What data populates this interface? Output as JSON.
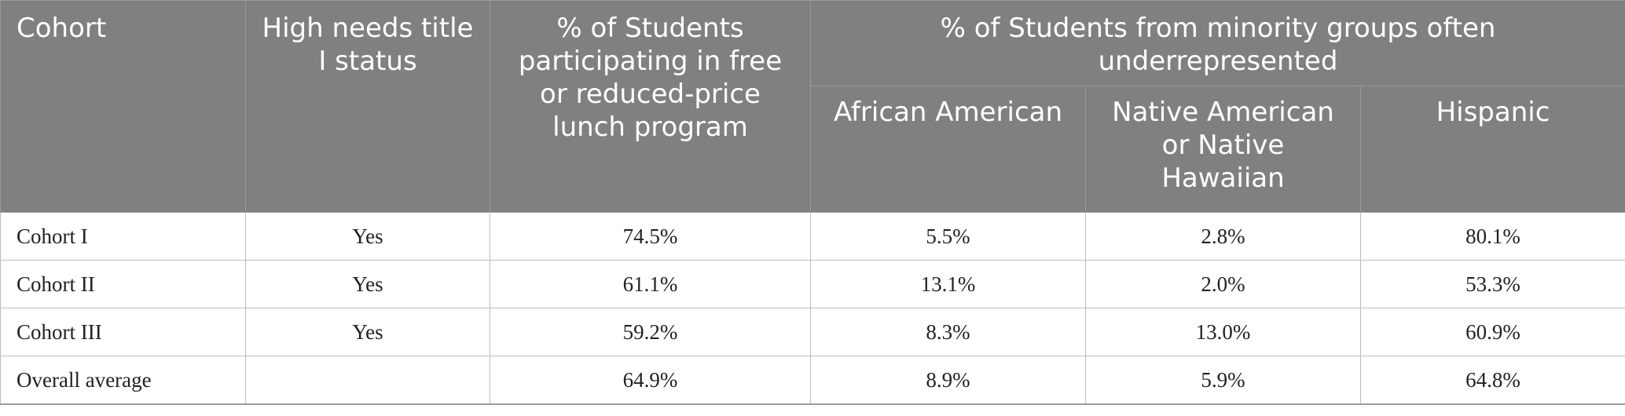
{
  "table": {
    "headers": {
      "cohort": "Cohort",
      "title_status": "High needs title I status",
      "lunch": "% of Students participating in free or reduced-price lunch program",
      "minority_group": "% of Students from minority groups often underrepresented",
      "african_american": "African American",
      "native": "Native American or Native Hawaiian",
      "hispanic": "Hispanic"
    },
    "rows": [
      {
        "cohort": "Cohort I",
        "title_status": "Yes",
        "lunch": "74.5%",
        "african_american": "5.5%",
        "native": "2.8%",
        "hispanic": "80.1%"
      },
      {
        "cohort": "Cohort II",
        "title_status": "Yes",
        "lunch": "61.1%",
        "african_american": "13.1%",
        "native": "2.0%",
        "hispanic": "53.3%"
      },
      {
        "cohort": "Cohort III",
        "title_status": "Yes",
        "lunch": "59.2%",
        "african_american": "8.3%",
        "native": "13.0%",
        "hispanic": "60.9%"
      },
      {
        "cohort": "Overall average",
        "title_status": "",
        "lunch": "64.9%",
        "african_american": "8.9%",
        "native": "5.9%",
        "hispanic": "64.8%"
      }
    ]
  },
  "colors": {
    "header_background": "#808080",
    "header_text": "#ffffff",
    "cell_border": "#bdbdbd"
  }
}
